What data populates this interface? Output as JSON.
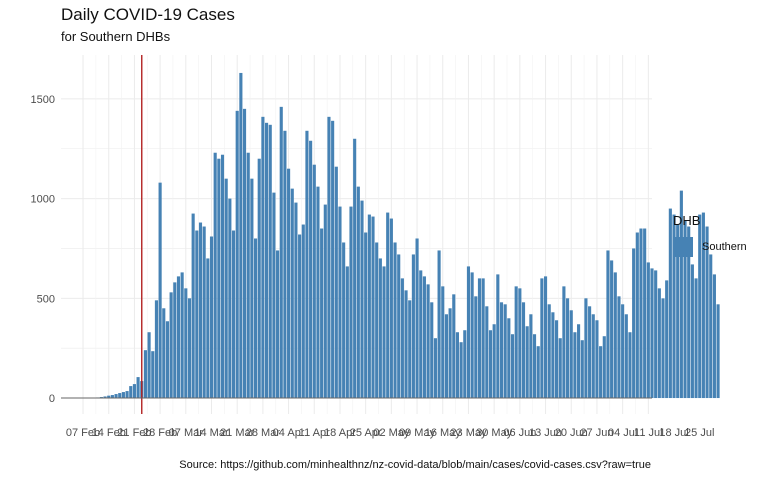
{
  "chart_data": {
    "type": "bar",
    "title": "Daily COVID-19 Cases",
    "subtitle": "for Southern DHBs",
    "caption": "Source: https://github.com/minhealthnz/nz-covid-data/blob/main/cases/covid-cases.csv?raw=true",
    "xlabel": "",
    "ylabel": "",
    "ylim": [
      -80,
      1720
    ],
    "yticks": [
      0,
      500,
      1000,
      1500
    ],
    "x_start": "2022-02-01",
    "x_end": "2022-07-12",
    "xticks": [
      {
        "date": "2022-02-07",
        "label": "07 Feb"
      },
      {
        "date": "2022-02-14",
        "label": "14 Feb"
      },
      {
        "date": "2022-02-21",
        "label": "21 Feb"
      },
      {
        "date": "2022-02-28",
        "label": "28 Feb"
      },
      {
        "date": "2022-03-07",
        "label": "07 Mar"
      },
      {
        "date": "2022-03-14",
        "label": "14 Mar"
      },
      {
        "date": "2022-03-21",
        "label": "21 Mar"
      },
      {
        "date": "2022-03-28",
        "label": "28 Mar"
      },
      {
        "date": "2022-04-04",
        "label": "04 Apr"
      },
      {
        "date": "2022-04-11",
        "label": "11 Apr"
      },
      {
        "date": "2022-04-18",
        "label": "18 Apr"
      },
      {
        "date": "2022-04-25",
        "label": "25 Apr"
      },
      {
        "date": "2022-05-02",
        "label": "02 May"
      },
      {
        "date": "2022-05-09",
        "label": "09 May"
      },
      {
        "date": "2022-05-16",
        "label": "16 May"
      },
      {
        "date": "2022-05-23",
        "label": "23 May"
      },
      {
        "date": "2022-05-30",
        "label": "30 May"
      },
      {
        "date": "2022-06-06",
        "label": "06 Jun"
      },
      {
        "date": "2022-06-13",
        "label": "13 Jun"
      },
      {
        "date": "2022-06-20",
        "label": "20 Jun"
      },
      {
        "date": "2022-06-27",
        "label": "27 Jun"
      },
      {
        "date": "2022-07-04",
        "label": "04 Jul"
      },
      {
        "date": "2022-07-11",
        "label": "11 Jul"
      },
      {
        "date": "2022-07-18",
        "label": "18 Jul"
      },
      {
        "date": "2022-07-25",
        "label": "25 Jul"
      }
    ],
    "reference_line": {
      "date": "2022-02-23",
      "color": "#b22222"
    },
    "grid": true,
    "legend": {
      "title": "DHB",
      "position": "right"
    },
    "series": [
      {
        "name": "Southern",
        "color": "#4682b4",
        "start_date": "2022-02-10",
        "values": [
          2,
          3,
          5,
          8,
          12,
          15,
          20,
          25,
          30,
          35,
          60,
          70,
          105,
          85,
          240,
          330,
          235,
          490,
          1080,
          450,
          385,
          530,
          580,
          610,
          630,
          550,
          500,
          925,
          840,
          880,
          860,
          700,
          810,
          1230,
          1200,
          1220,
          1100,
          1000,
          840,
          1440,
          1630,
          1450,
          1230,
          1100,
          800,
          1200,
          1410,
          1380,
          1370,
          1030,
          740,
          1460,
          1340,
          1150,
          1050,
          980,
          820,
          870,
          1340,
          1290,
          1170,
          1060,
          850,
          970,
          1410,
          1390,
          1160,
          960,
          780,
          660,
          960,
          1300,
          1060,
          990,
          830,
          920,
          910,
          780,
          700,
          660,
          930,
          900,
          780,
          720,
          600,
          540,
          490,
          720,
          800,
          640,
          610,
          570,
          480,
          300,
          740,
          560,
          420,
          450,
          520,
          330,
          280,
          340,
          660,
          630,
          510,
          600,
          600,
          460,
          340,
          370,
          620,
          480,
          470,
          400,
          320,
          560,
          550,
          480,
          360,
          420,
          320,
          260,
          600,
          610,
          470,
          430,
          390,
          300,
          560,
          500,
          440,
          330,
          370,
          290,
          500,
          460,
          420,
          390,
          260,
          310,
          740,
          690,
          630,
          510,
          470,
          420,
          330,
          750,
          830,
          850,
          850,
          680,
          650,
          640,
          550,
          500,
          590,
          950,
          920,
          870,
          1040,
          890,
          860,
          670,
          600,
          920,
          930,
          860,
          720,
          620,
          470
        ]
      }
    ]
  }
}
